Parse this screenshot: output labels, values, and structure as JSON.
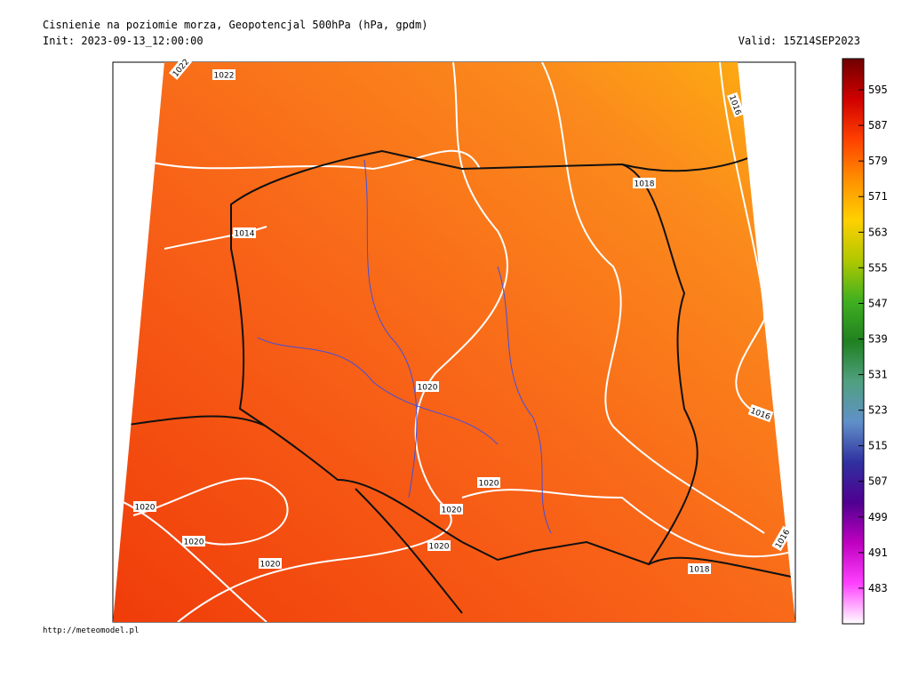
{
  "header": {
    "title": "Cisnienie na poziomie morza, Geopotencjal 500hPa (hPa, gpdm)",
    "init": "Init: 2023-09-13_12:00:00",
    "valid": "Valid: 15Z14SEP2023"
  },
  "colorbar": {
    "range": [
      475,
      602
    ],
    "ticks": [
      483,
      491,
      499,
      507,
      515,
      523,
      531,
      539,
      547,
      555,
      563,
      571,
      579,
      587,
      595
    ],
    "colors": [
      "#ffffff",
      "#ff40ff",
      "#c000c0",
      "#500090",
      "#3030a0",
      "#6090c8",
      "#50a080",
      "#208020",
      "#40b020",
      "#b0c800",
      "#ffd000",
      "#ff9000",
      "#ff4000",
      "#d00000",
      "#700000"
    ]
  },
  "isobar_labels": [
    "1022",
    "1022",
    "1016",
    "1018",
    "1014",
    "1020",
    "1016",
    "1020",
    "1020",
    "1020",
    "1020",
    "1020",
    "1020",
    "1016",
    "1018"
  ],
  "footer": {
    "url": "http://meteomodel.pl"
  }
}
